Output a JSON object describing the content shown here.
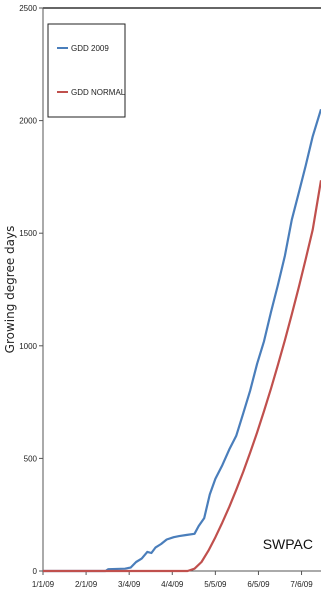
{
  "chart_data": {
    "type": "line",
    "ylabel": "Growing degree days",
    "xlabel": "",
    "ylim": [
      0,
      2500
    ],
    "xlim": [
      "2009-01-01",
      "2009-07-20"
    ],
    "yticks": [
      "0",
      "500",
      "1000",
      "1500",
      "2000",
      "2500"
    ],
    "xticks": [
      {
        "date": "2009-01-01",
        "label": "1/1/09"
      },
      {
        "date": "2009-02-01",
        "label": "2/1/09"
      },
      {
        "date": "2009-03-04",
        "label": "3/4/09"
      },
      {
        "date": "2009-04-04",
        "label": "4/4/09"
      },
      {
        "date": "2009-05-05",
        "label": "5/5/09"
      },
      {
        "date": "2009-06-05",
        "label": "6/5/09"
      },
      {
        "date": "2009-07-06",
        "label": "7/6/09"
      }
    ],
    "legend_position": "top-left",
    "grid": false,
    "annotation": "SWPAC",
    "series": [
      {
        "name": "GDD 2009",
        "color": "#4a7ebb",
        "points": [
          [
            "2009-01-01",
            0
          ],
          [
            "2009-02-15",
            0
          ],
          [
            "2009-02-17",
            8
          ],
          [
            "2009-03-01",
            10
          ],
          [
            "2009-03-05",
            15
          ],
          [
            "2009-03-09",
            40
          ],
          [
            "2009-03-13",
            55
          ],
          [
            "2009-03-17",
            85
          ],
          [
            "2009-03-20",
            80
          ],
          [
            "2009-03-23",
            105
          ],
          [
            "2009-03-27",
            120
          ],
          [
            "2009-03-31",
            140
          ],
          [
            "2009-04-05",
            150
          ],
          [
            "2009-04-09",
            155
          ],
          [
            "2009-04-14",
            160
          ],
          [
            "2009-04-20",
            165
          ],
          [
            "2009-04-23",
            200
          ],
          [
            "2009-04-27",
            235
          ],
          [
            "2009-05-01",
            340
          ],
          [
            "2009-05-05",
            410
          ],
          [
            "2009-05-10",
            470
          ],
          [
            "2009-05-15",
            540
          ],
          [
            "2009-05-20",
            600
          ],
          [
            "2009-05-25",
            700
          ],
          [
            "2009-05-30",
            800
          ],
          [
            "2009-06-04",
            920
          ],
          [
            "2009-06-09",
            1020
          ],
          [
            "2009-06-14",
            1150
          ],
          [
            "2009-06-19",
            1270
          ],
          [
            "2009-06-24",
            1400
          ],
          [
            "2009-06-29",
            1560
          ],
          [
            "2009-07-04",
            1680
          ],
          [
            "2009-07-09",
            1800
          ],
          [
            "2009-07-14",
            1930
          ],
          [
            "2009-07-20",
            2050
          ]
        ]
      },
      {
        "name": "GDD NORMAL",
        "color": "#c0504d",
        "points": [
          [
            "2009-01-01",
            0
          ],
          [
            "2009-04-15",
            0
          ],
          [
            "2009-04-20",
            10
          ],
          [
            "2009-04-25",
            40
          ],
          [
            "2009-04-30",
            90
          ],
          [
            "2009-05-05",
            150
          ],
          [
            "2009-05-10",
            215
          ],
          [
            "2009-05-15",
            285
          ],
          [
            "2009-05-20",
            360
          ],
          [
            "2009-05-25",
            440
          ],
          [
            "2009-05-30",
            525
          ],
          [
            "2009-06-04",
            615
          ],
          [
            "2009-06-09",
            710
          ],
          [
            "2009-06-14",
            810
          ],
          [
            "2009-06-19",
            915
          ],
          [
            "2009-06-24",
            1025
          ],
          [
            "2009-06-29",
            1140
          ],
          [
            "2009-07-04",
            1260
          ],
          [
            "2009-07-09",
            1385
          ],
          [
            "2009-07-14",
            1515
          ],
          [
            "2009-07-20",
            1735
          ]
        ]
      }
    ]
  }
}
